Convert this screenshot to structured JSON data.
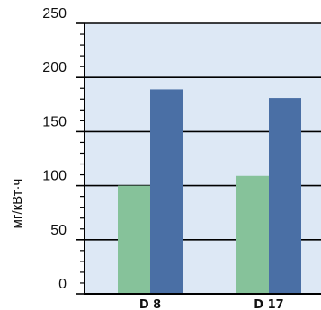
{
  "chart_data": {
    "type": "bar",
    "ylabel": "мг/кВт·ч",
    "ylim": [
      0,
      250
    ],
    "yticks": [
      0,
      50,
      100,
      150,
      200,
      250
    ],
    "minor_tick_step": 10,
    "grid": true,
    "categories": [
      "D 8",
      "D 17"
    ],
    "series": [
      {
        "values": [
          100,
          109
        ],
        "color": "#86c29a"
      },
      {
        "values": [
          189,
          181
        ],
        "color": "#4a6fa5"
      }
    ],
    "plot_background": "#dde8f5"
  }
}
